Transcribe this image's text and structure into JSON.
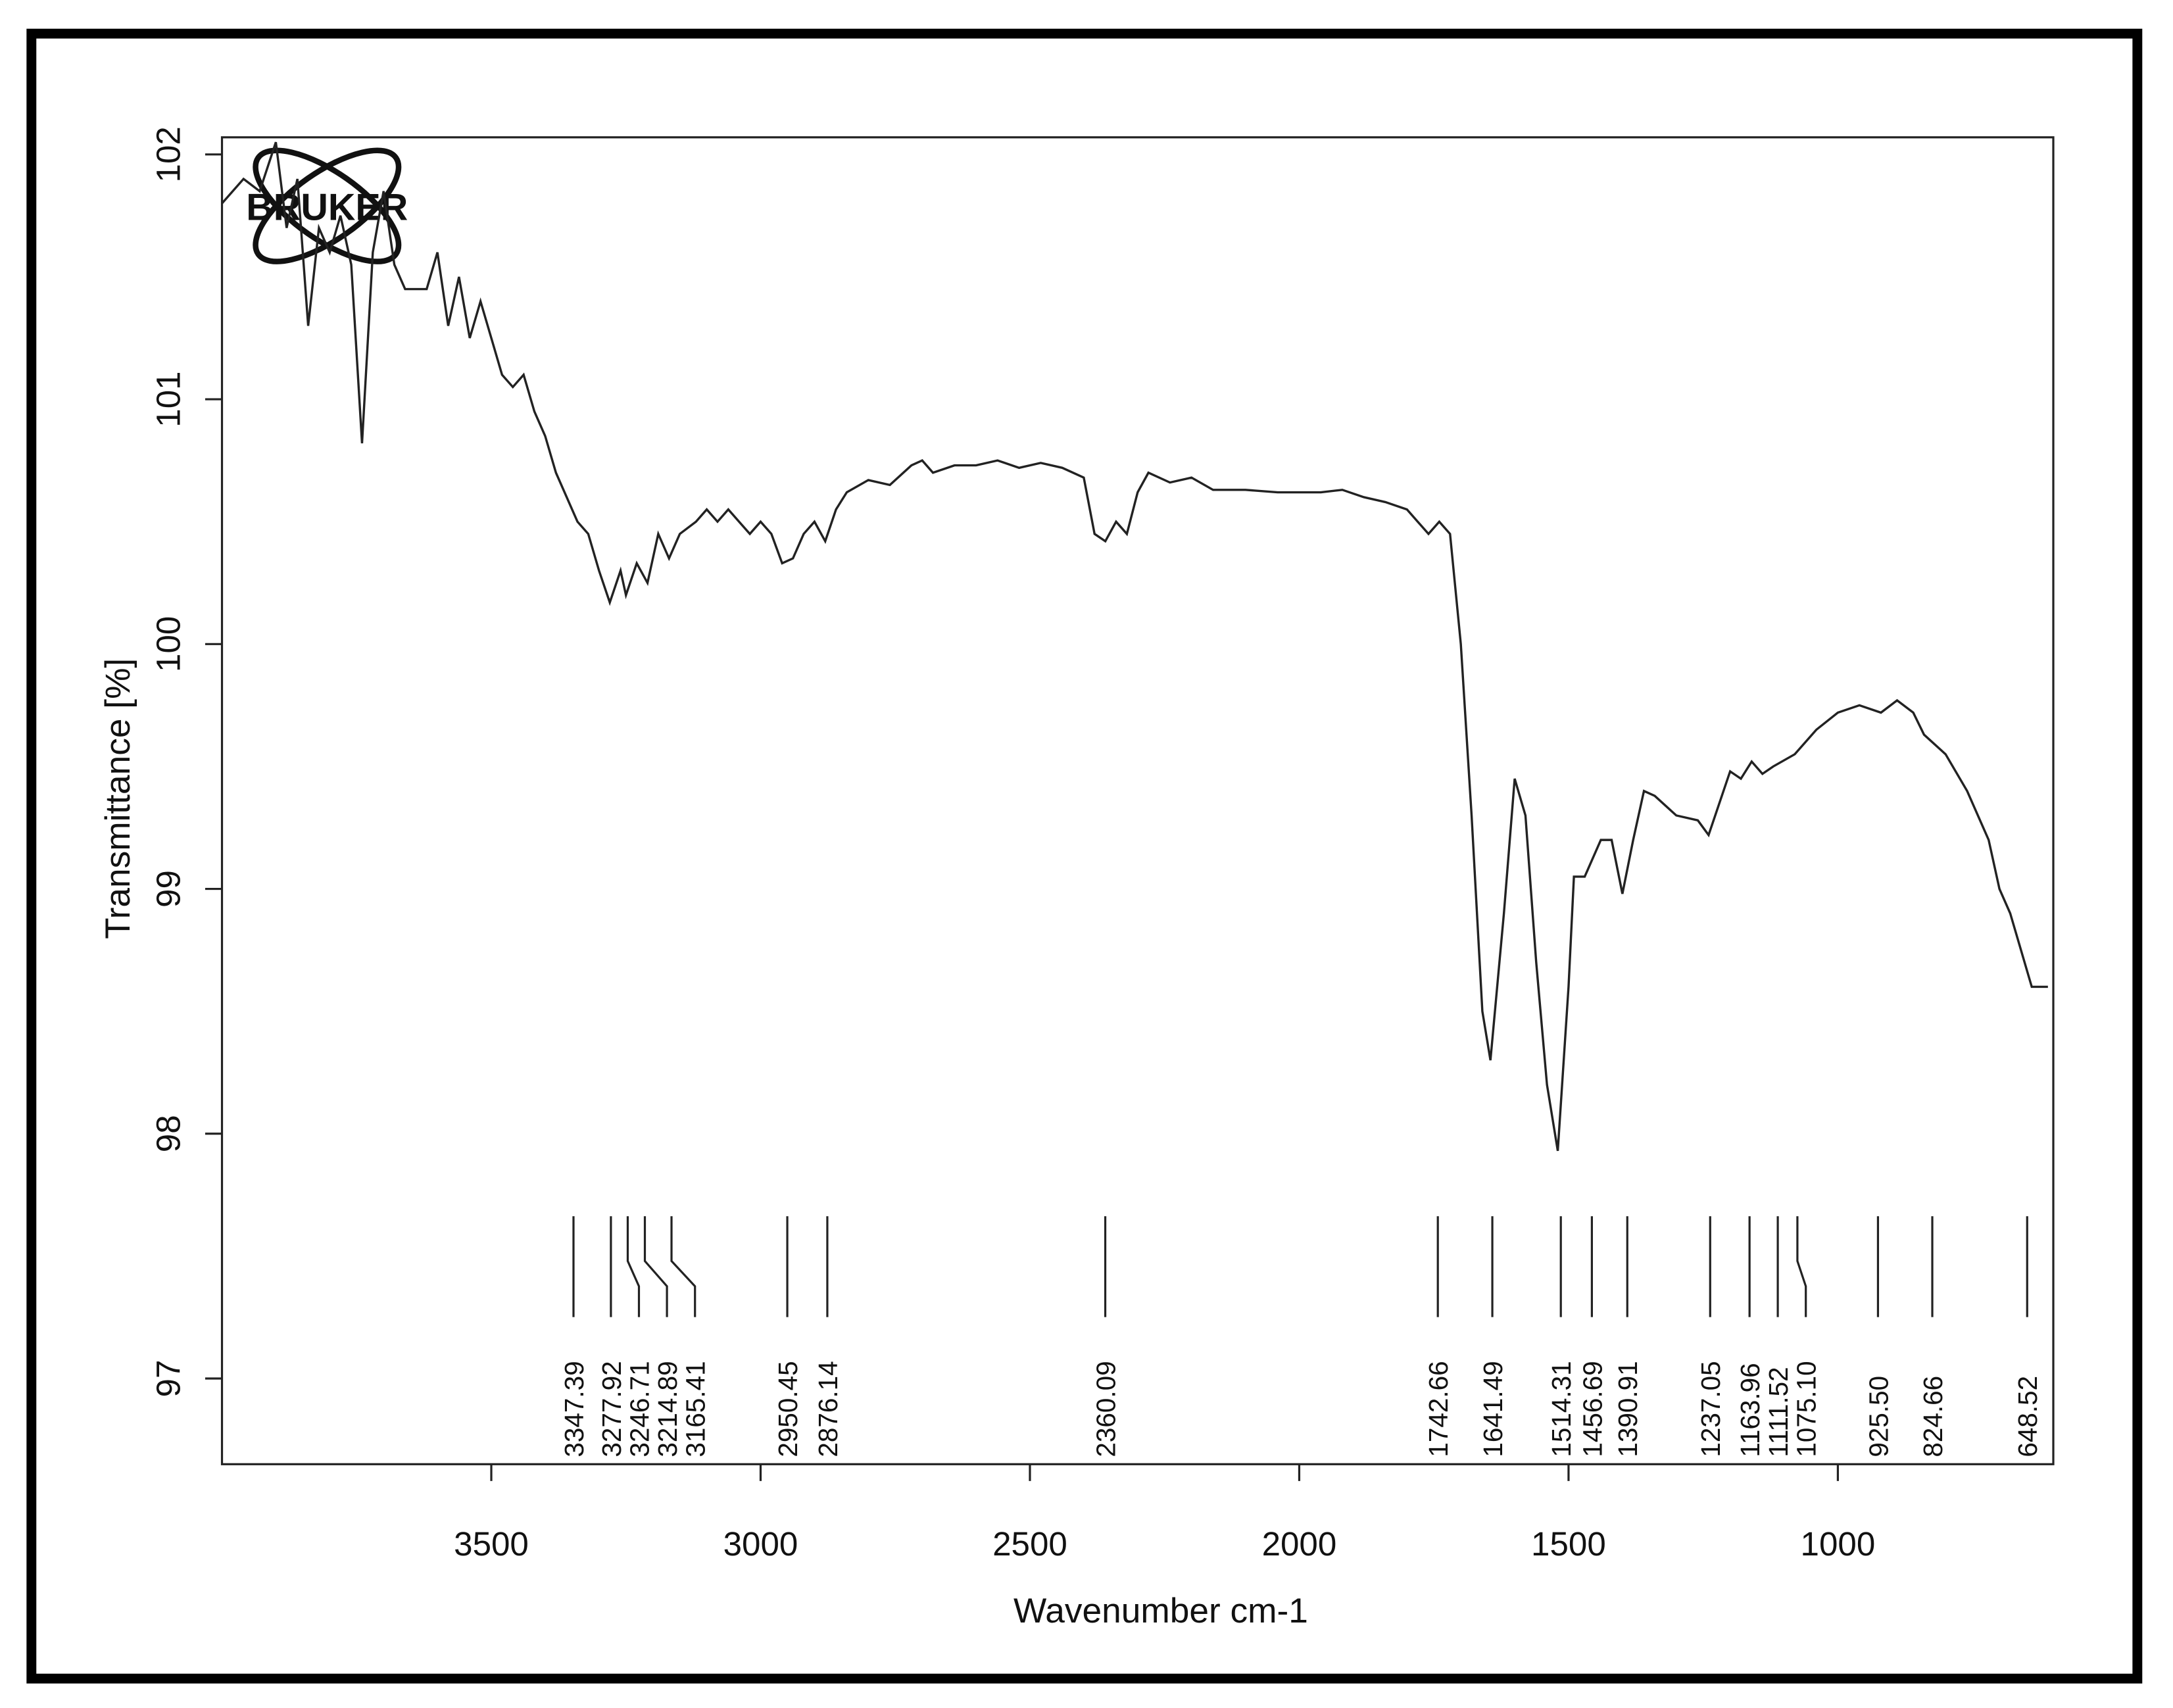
{
  "chart_data": {
    "type": "line",
    "logo": "BRUKER",
    "xlabel": "Wavenumber cm-1",
    "ylabel": "Transmittance [%]",
    "color": "#222222",
    "xlim": [
      4000,
      600
    ],
    "ylim": [
      96.65,
      102.07
    ],
    "xticks": [
      3500,
      3000,
      2500,
      2000,
      1500,
      1000
    ],
    "yticks": [
      97,
      98,
      99,
      100,
      101,
      102
    ],
    "x": [
      4000,
      3960,
      3930,
      3900,
      3880,
      3860,
      3840,
      3820,
      3800,
      3780,
      3760,
      3740,
      3720,
      3700,
      3680,
      3660,
      3640,
      3620,
      3600,
      3580,
      3560,
      3540,
      3520,
      3500,
      3480,
      3460,
      3440,
      3420,
      3400,
      3380,
      3360,
      3340,
      3320,
      3300,
      3280,
      3260,
      3250,
      3230,
      3210,
      3190,
      3170,
      3150,
      3120,
      3100,
      3080,
      3060,
      3040,
      3020,
      3000,
      2980,
      2960,
      2940,
      2920,
      2900,
      2880,
      2860,
      2840,
      2800,
      2760,
      2720,
      2700,
      2680,
      2640,
      2600,
      2560,
      2520,
      2480,
      2440,
      2400,
      2380,
      2360,
      2340,
      2320,
      2300,
      2280,
      2240,
      2200,
      2160,
      2100,
      2040,
      2000,
      1960,
      1920,
      1880,
      1840,
      1800,
      1780,
      1760,
      1740,
      1720,
      1700,
      1680,
      1660,
      1645,
      1620,
      1600,
      1580,
      1560,
      1540,
      1520,
      1500,
      1490,
      1470,
      1440,
      1420,
      1400,
      1380,
      1360,
      1340,
      1300,
      1260,
      1240,
      1220,
      1200,
      1180,
      1160,
      1140,
      1120,
      1080,
      1040,
      1000,
      960,
      920,
      890,
      860,
      840,
      800,
      760,
      720,
      700,
      680,
      660,
      640,
      610
    ],
    "values": [
      101.8,
      101.9,
      101.85,
      102.05,
      101.7,
      101.9,
      101.3,
      101.7,
      101.6,
      101.75,
      101.55,
      100.82,
      101.6,
      101.85,
      101.55,
      101.45,
      101.45,
      101.45,
      101.6,
      101.3,
      101.5,
      101.25,
      101.4,
      101.25,
      101.1,
      101.05,
      101.1,
      100.95,
      100.85,
      100.7,
      100.6,
      100.5,
      100.45,
      100.3,
      100.17,
      100.3,
      100.2,
      100.33,
      100.25,
      100.45,
      100.35,
      100.45,
      100.5,
      100.55,
      100.5,
      100.55,
      100.5,
      100.45,
      100.5,
      100.45,
      100.33,
      100.35,
      100.45,
      100.5,
      100.42,
      100.55,
      100.62,
      100.67,
      100.65,
      100.73,
      100.75,
      100.7,
      100.73,
      100.73,
      100.75,
      100.72,
      100.74,
      100.72,
      100.68,
      100.45,
      100.42,
      100.5,
      100.45,
      100.62,
      100.7,
      100.66,
      100.68,
      100.63,
      100.63,
      100.62,
      100.62,
      100.62,
      100.63,
      100.6,
      100.58,
      100.55,
      100.5,
      100.45,
      100.5,
      100.45,
      100.0,
      99.3,
      98.5,
      98.3,
      98.9,
      99.45,
      99.3,
      98.7,
      98.2,
      97.93,
      98.6,
      99.05,
      99.05,
      99.2,
      99.2,
      98.98,
      99.2,
      99.4,
      99.38,
      99.3,
      99.28,
      99.22,
      99.35,
      99.48,
      99.45,
      99.52,
      99.47,
      99.5,
      99.55,
      99.65,
      99.72,
      99.75,
      99.72,
      99.77,
      99.72,
      99.63,
      99.55,
      99.4,
      99.2,
      99.0,
      98.9,
      98.75,
      98.6,
      98.6
    ],
    "peaks": [
      3347.39,
      3277.92,
      3246.71,
      3214.89,
      3165.41,
      2950.45,
      2876.14,
      2360.09,
      1742.66,
      1641.49,
      1514.31,
      1456.69,
      1390.91,
      1237.05,
      1163.96,
      1111.52,
      {
        "value": 1075.1,
        "label": "1075.10"
      },
      {
        "value": 925.5,
        "label": "925.50"
      },
      824.66,
      648.52
    ]
  }
}
